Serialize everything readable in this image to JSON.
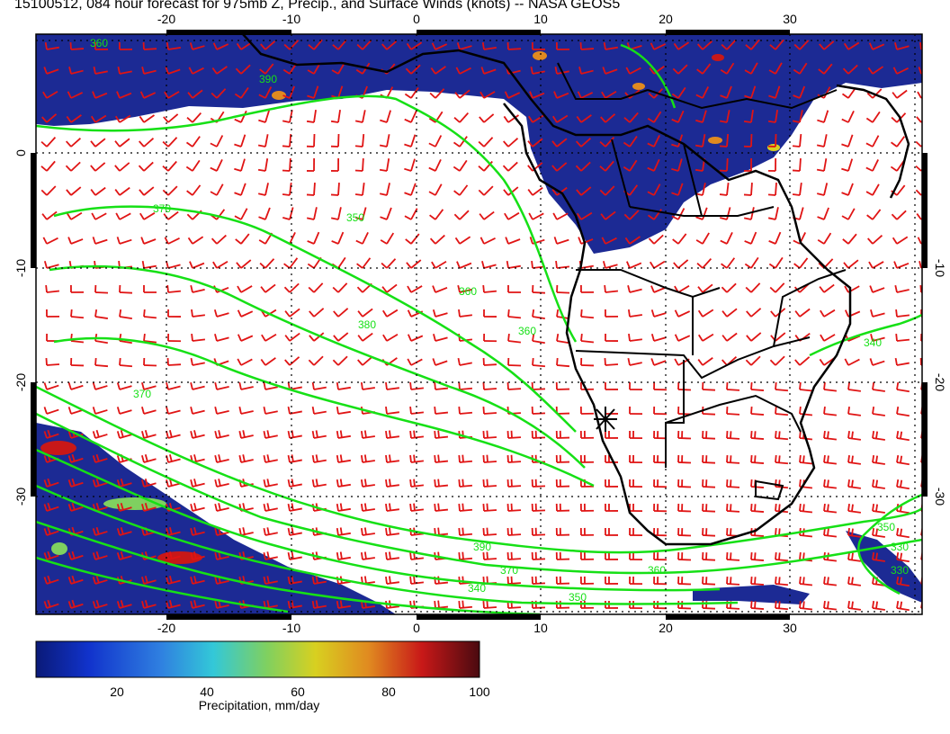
{
  "title": "15100512, 084 hour forecast for 975mb Z, Precip., and Surface Winds (knots) -- NASA GEOS5",
  "axes": {
    "lon_ticks_top": [
      "-20",
      "-10",
      "0",
      "10",
      "20",
      "30"
    ],
    "lon_ticks_bottom": [
      "-20",
      "-10",
      "0",
      "10",
      "20",
      "30"
    ],
    "lat_ticks_left": [
      "0",
      "-10",
      "-20",
      "-30"
    ],
    "lat_ticks_right": [
      "-10",
      "-20",
      "-30"
    ],
    "lon_range": [
      -30,
      42
    ],
    "lat_range": [
      -40,
      10
    ]
  },
  "contour_labels": [
    "360",
    "390",
    "370",
    "350",
    "360",
    "380",
    "370",
    "390",
    "370",
    "360",
    "350",
    "340",
    "360",
    "330",
    "330",
    "340",
    "350"
  ],
  "station_marker": {
    "lon": 15,
    "lat": -23.5,
    "symbol": "asterisk"
  },
  "colorbar": {
    "label": "Precipitation, mm/day",
    "tick_labels": [
      "20",
      "40",
      "60",
      "80",
      "100"
    ],
    "range": [
      0,
      100
    ],
    "colors": [
      "#0a1a78",
      "#1133cc",
      "#2f7fe0",
      "#33c8d8",
      "#7fd060",
      "#d8d020",
      "#e08a20",
      "#c81818",
      "#4a0a10"
    ]
  },
  "colors": {
    "precip_fill": "#1c2a94",
    "contour": "#16e016",
    "wind_barb": "#e01414",
    "coastline": "#000000"
  }
}
